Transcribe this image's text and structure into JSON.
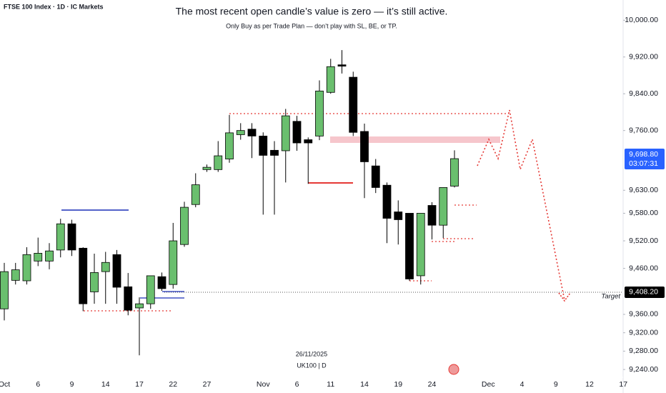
{
  "chart_data": {
    "type": "candlestick",
    "header": "FTSE 100 Index · 1D · IC Markets",
    "title": "The most recent open candle’s value is zero — it’s still active.",
    "subtitle": "Only Buy as per Trade Plan — don’t play with SL, BE, or TP.",
    "categories": [
      "Oct",
      null,
      null,
      "6",
      null,
      null,
      "9",
      null,
      null,
      "14",
      null,
      null,
      "17",
      null,
      null,
      "22",
      null,
      null,
      "27",
      null,
      null,
      null,
      null,
      "Nov",
      null,
      null,
      "6",
      null,
      null,
      "11",
      null,
      null,
      "14",
      null,
      null,
      "19",
      null,
      null,
      "24",
      null,
      null,
      null,
      null,
      "Dec",
      null,
      null,
      "4",
      null,
      null,
      "9",
      null,
      null,
      "12",
      null,
      null,
      "17"
    ],
    "open": [
      9372,
      9434,
      9433,
      9476,
      9476,
      9500,
      9557,
      9504,
      9409,
      9453,
      9490,
      9420,
      9374,
      9383,
      9442,
      9425,
      9512,
      9599,
      9675,
      9675,
      9698,
      9751,
      9763,
      9748,
      9717,
      9716,
      9780,
      9740,
      9748,
      9843,
      9903,
      9876,
      9758,
      9683,
      9641,
      9583,
      9580,
      9444,
      9597,
      9554,
      9639,
      null,
      null,
      null,
      null,
      null,
      null,
      null,
      null,
      null,
      null,
      null,
      null,
      null,
      null,
      null
    ],
    "high": [
      9472,
      9472,
      9506,
      9527,
      9515,
      9568,
      9566,
      9506,
      9492,
      9496,
      9500,
      9450,
      9397,
      9444,
      9451,
      9559,
      9605,
      9667,
      9686,
      9737,
      9794,
      9776,
      9776,
      9756,
      9737,
      9807,
      9792,
      9745,
      9869,
      9916,
      9935,
      9888,
      9775,
      9698,
      9647,
      9608,
      9580,
      9580,
      9604,
      9636,
      9717,
      null,
      null,
      null,
      null,
      null,
      null,
      null,
      null,
      null,
      null,
      null,
      null,
      null,
      null,
      null
    ],
    "low": [
      9347,
      9425,
      9425,
      9465,
      9458,
      9484,
      9487,
      9367,
      9383,
      9383,
      9383,
      9358,
      9271,
      9372,
      9411,
      9416,
      9507,
      9593,
      9670,
      9670,
      9690,
      9740,
      9700,
      9577,
      9577,
      9647,
      9716,
      9644,
      9739,
      9840,
      9884,
      9748,
      9613,
      9624,
      9515,
      9512,
      9433,
      9425,
      9523,
      9526,
      9636,
      null,
      null,
      null,
      null,
      null,
      null,
      null,
      null,
      null,
      null,
      null,
      null,
      null,
      null,
      null
    ],
    "close": [
      9453,
      9457,
      9490,
      9493,
      9498,
      9557,
      9500,
      9383,
      9451,
      9473,
      9419,
      9369,
      9383,
      9444,
      9416,
      9520,
      9593,
      9642,
      9680,
      9705,
      9755,
      9760,
      9748,
      9706,
      9706,
      9792,
      9733,
      9733,
      9846,
      9899,
      9900,
      9756,
      9692,
      9636,
      9569,
      9566,
      9437,
      9580,
      9554,
      9636,
      9698.8,
      null,
      null,
      null,
      null,
      null,
      null,
      null,
      null,
      null,
      null,
      null,
      null,
      null,
      null,
      null
    ],
    "up_color": "#6abf6e",
    "down_color": "#000000",
    "ylim": [
      9220,
      10044
    ],
    "yticks": [
      {
        "value": 10000,
        "label": "10,000.00"
      },
      {
        "value": 9920,
        "label": "9,920.00"
      },
      {
        "value": 9840,
        "label": "9,840.00"
      },
      {
        "value": 9760,
        "label": "9,760.00"
      },
      {
        "value": 9630,
        "label": "9,630.00"
      },
      {
        "value": 9580,
        "label": "9,580.00"
      },
      {
        "value": 9520,
        "label": "9,520.00"
      },
      {
        "value": 9460,
        "label": "9,460.00"
      },
      {
        "value": 9360,
        "label": "9,360.00"
      },
      {
        "value": 9320,
        "label": "9,320.00"
      },
      {
        "value": 9280,
        "label": "9,280.00"
      },
      {
        "value": 9240,
        "label": "9,240.00"
      }
    ],
    "last_price": {
      "value": 9698.8,
      "label": "9,698.80",
      "countdown": "03:07:31",
      "color": "#2962ff"
    },
    "target": {
      "value": 9408.2,
      "label": "9,408.20",
      "text": "Target"
    },
    "date_label": "26/11/2025",
    "symbol_label": "UK100 | D"
  }
}
